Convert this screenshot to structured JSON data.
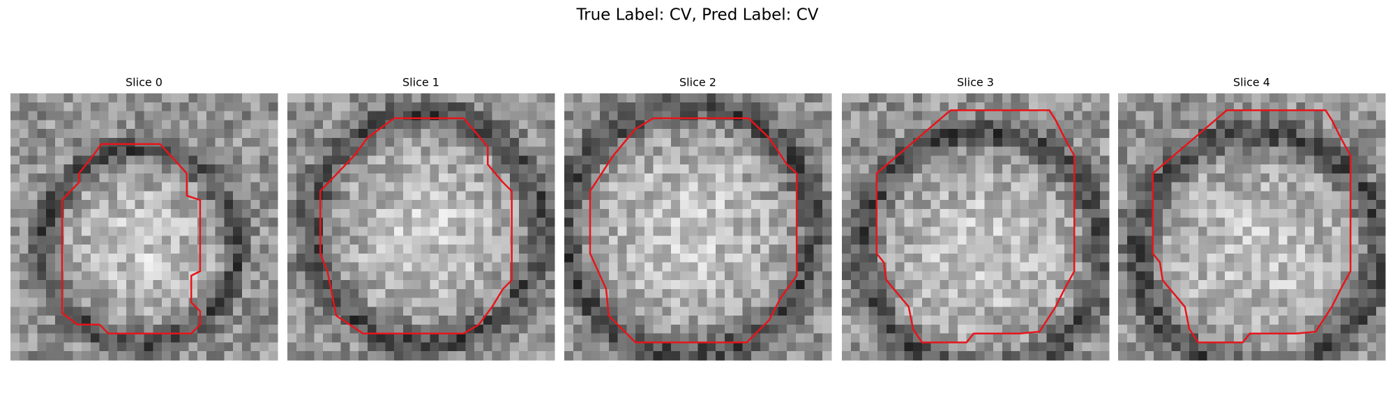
{
  "title": "True Label: CV, Pred Label: CV",
  "panels": [
    {
      "title": "Slice 0"
    },
    {
      "title": "Slice 1"
    },
    {
      "title": "Slice 2"
    },
    {
      "title": "Slice 3"
    },
    {
      "title": "Slice 4"
    }
  ]
}
